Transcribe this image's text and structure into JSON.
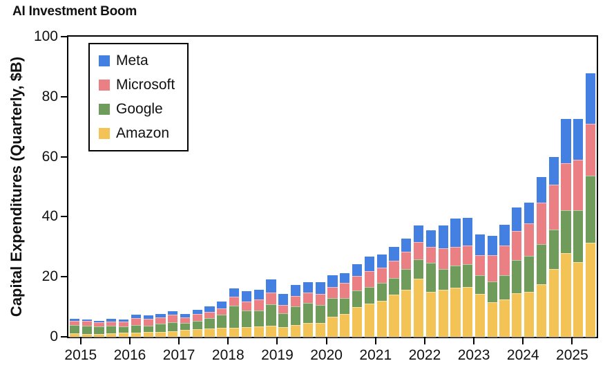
{
  "title": "AI Investment Boom",
  "y_axis": {
    "label": "Capital Expenditures (Quarterly, $B)",
    "ticks": [
      "0",
      "20",
      "40",
      "60",
      "80",
      "100"
    ]
  },
  "x_axis": {
    "ticks": [
      "2015",
      "2016",
      "2017",
      "2018",
      "2019",
      "2020",
      "2021",
      "2022",
      "2023",
      "2024",
      "2025"
    ]
  },
  "legend": {
    "items": [
      {
        "label": "Meta",
        "color": "#4380E2"
      },
      {
        "label": "Microsoft",
        "color": "#EA8084"
      },
      {
        "label": "Google",
        "color": "#6F9C5B"
      },
      {
        "label": "Amazon",
        "color": "#F4C355"
      }
    ]
  },
  "chart_data": {
    "type": "bar",
    "stacked": true,
    "title": "AI Investment Boom",
    "ylabel": "Capital Expenditures (Quarterly, $B)",
    "ylim": [
      0,
      100
    ],
    "grid": false,
    "legend_position": "upper left",
    "x_tick_years": [
      "2015",
      "2016",
      "2017",
      "2018",
      "2019",
      "2020",
      "2021",
      "2022",
      "2023",
      "2024",
      "2025"
    ],
    "x": [
      "2014 Q4",
      "2015 Q1",
      "2015 Q2",
      "2015 Q3",
      "2015 Q4",
      "2016 Q1",
      "2016 Q2",
      "2016 Q3",
      "2016 Q4",
      "2017 Q1",
      "2017 Q2",
      "2017 Q3",
      "2017 Q4",
      "2018 Q1",
      "2018 Q2",
      "2018 Q3",
      "2018 Q4",
      "2019 Q1",
      "2019 Q2",
      "2019 Q3",
      "2019 Q4",
      "2020 Q1",
      "2020 Q2",
      "2020 Q3",
      "2020 Q4",
      "2021 Q1",
      "2021 Q2",
      "2021 Q3",
      "2021 Q4",
      "2022 Q1",
      "2022 Q2",
      "2022 Q3",
      "2022 Q4",
      "2023 Q1",
      "2023 Q2",
      "2023 Q3",
      "2023 Q4",
      "2024 Q1",
      "2024 Q2",
      "2024 Q3",
      "2024 Q4",
      "2025 Q1",
      "2025 Q2"
    ],
    "stack_order_bottom_to_top": [
      "Amazon",
      "Google",
      "Microsoft",
      "Meta"
    ],
    "series": [
      {
        "name": "Meta",
        "color": "#4380E2",
        "values": [
          0.5,
          0.5,
          0.5,
          0.8,
          0.7,
          1.1,
          1.2,
          1.1,
          1.2,
          1.3,
          1.4,
          1.8,
          2.3,
          2.8,
          3.5,
          3.3,
          4.4,
          3.8,
          3.8,
          3.5,
          4.0,
          3.7,
          3.4,
          3.9,
          4.8,
          4.3,
          4.7,
          4.5,
          5.4,
          5.5,
          7.7,
          9.5,
          9.2,
          7.1,
          6.4,
          6.8,
          7.9,
          6.7,
          8.5,
          9.2,
          14.8,
          13.7,
          17.0
        ]
      },
      {
        "name": "Microsoft",
        "color": "#EA8084",
        "values": [
          1.5,
          1.4,
          1.4,
          1.5,
          1.6,
          2.3,
          2.1,
          2.1,
          2.5,
          1.7,
          2.3,
          2.1,
          2.2,
          2.9,
          3.1,
          3.7,
          3.9,
          2.6,
          3.4,
          3.4,
          3.5,
          3.9,
          5.0,
          4.9,
          5.4,
          5.1,
          5.8,
          5.8,
          5.9,
          5.3,
          6.9,
          6.3,
          6.3,
          6.6,
          8.9,
          9.9,
          9.7,
          11.0,
          13.9,
          14.9,
          15.8,
          16.7,
          17.1
        ]
      },
      {
        "name": "Google",
        "color": "#6F9C5B",
        "values": [
          2.8,
          2.9,
          2.5,
          2.4,
          2.1,
          2.4,
          2.1,
          2.6,
          3.1,
          2.5,
          2.8,
          3.5,
          4.3,
          7.3,
          5.5,
          5.3,
          7.1,
          4.6,
          6.1,
          6.7,
          6.1,
          6.0,
          5.4,
          5.4,
          5.5,
          5.9,
          5.5,
          6.8,
          6.4,
          9.8,
          6.8,
          7.3,
          7.6,
          6.3,
          6.9,
          8.1,
          11.0,
          12.0,
          13.2,
          13.1,
          14.3,
          17.2,
          22.4
        ]
      },
      {
        "name": "Amazon",
        "color": "#F4C355",
        "values": [
          1.1,
          0.9,
          1.0,
          1.2,
          1.4,
          1.5,
          1.7,
          1.7,
          1.8,
          2.2,
          2.5,
          2.7,
          3.0,
          3.1,
          3.2,
          3.4,
          3.7,
          3.3,
          4.0,
          4.7,
          4.6,
          6.8,
          7.5,
          10.0,
          11.1,
          12.1,
          14.0,
          15.7,
          19.3,
          14.9,
          15.7,
          16.4,
          16.6,
          14.2,
          11.5,
          12.5,
          14.6,
          14.9,
          17.6,
          22.6,
          27.8,
          25.0,
          31.4
        ]
      }
    ]
  }
}
